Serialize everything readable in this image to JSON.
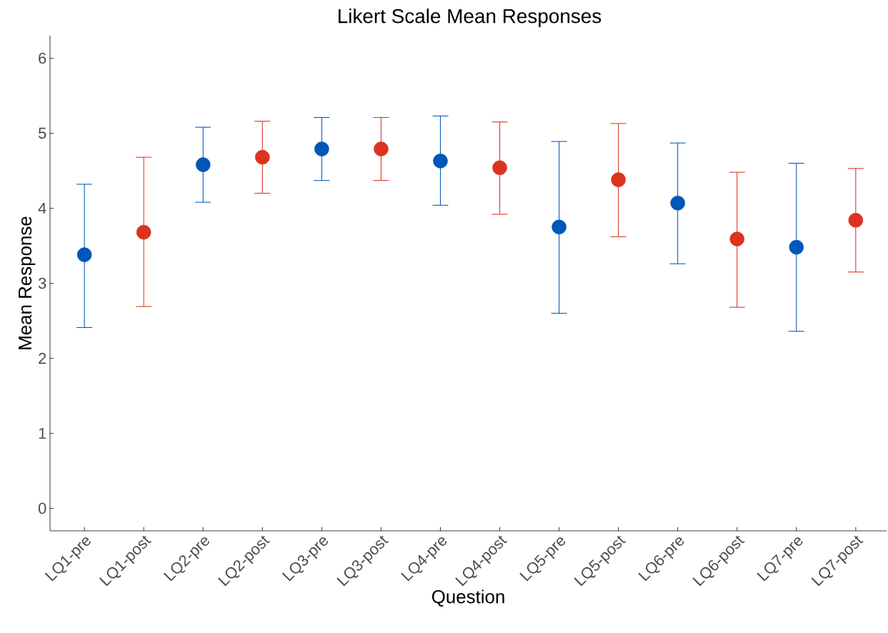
{
  "chart_data": {
    "type": "scatter",
    "title": "Likert Scale Mean Responses",
    "xlabel": "Question",
    "ylabel": "Mean Response",
    "categories": [
      "LQ1-pre",
      "LQ1-post",
      "LQ2-pre",
      "LQ2-post",
      "LQ3-pre",
      "LQ3-post",
      "LQ4-pre",
      "LQ4-post",
      "LQ5-pre",
      "LQ5-post",
      "LQ6-pre",
      "LQ6-post",
      "LQ7-pre",
      "LQ7-post"
    ],
    "series": [
      {
        "color": "#0057b7",
        "values": [
          3.38,
          null,
          4.58,
          null,
          4.79,
          null,
          4.63,
          null,
          3.75,
          null,
          4.07,
          null,
          3.48,
          null
        ],
        "errors": [
          [
            2.41,
            4.32
          ],
          null,
          [
            4.08,
            5.08
          ],
          null,
          [
            4.37,
            5.21
          ],
          null,
          [
            4.04,
            5.23
          ],
          null,
          [
            2.6,
            4.89
          ],
          null,
          [
            3.26,
            4.87
          ],
          null,
          [
            2.36,
            4.6
          ],
          null
        ]
      },
      {
        "color": "#dc3220",
        "values": [
          null,
          3.68,
          null,
          4.68,
          null,
          4.79,
          null,
          4.54,
          null,
          4.38,
          null,
          3.59,
          null,
          3.84
        ],
        "errors": [
          null,
          [
            2.69,
            4.68
          ],
          null,
          [
            4.2,
            5.16
          ],
          null,
          [
            4.37,
            5.21
          ],
          null,
          [
            3.92,
            5.15
          ],
          null,
          [
            3.62,
            5.13
          ],
          null,
          [
            2.68,
            4.48
          ],
          null,
          [
            3.15,
            4.53
          ]
        ]
      }
    ],
    "ylim": [
      -0.3,
      6.3
    ],
    "yticks": [
      0,
      1,
      2,
      3,
      4,
      5,
      6
    ],
    "grid": false,
    "marker": "circle"
  }
}
